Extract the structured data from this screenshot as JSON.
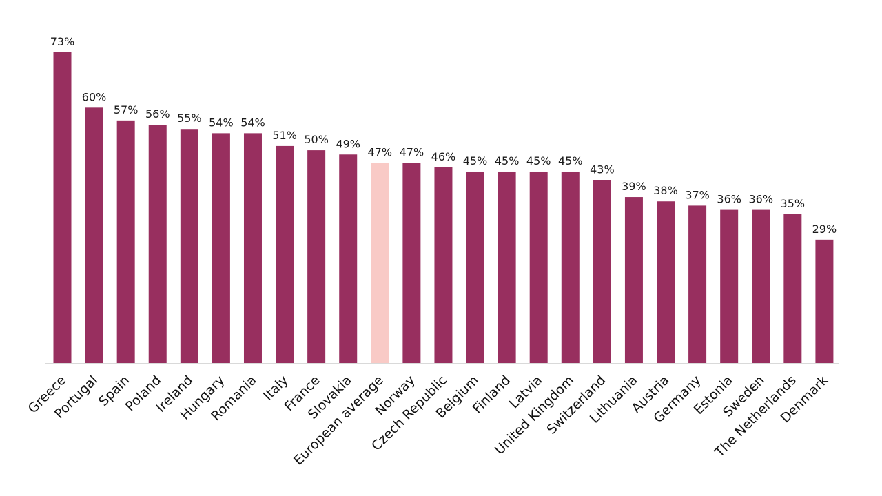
{
  "chart_data": {
    "type": "bar",
    "categories": [
      "Greece",
      "Portugal",
      "Spain",
      "Poland",
      "Ireland",
      "Hungary",
      "Romania",
      "Italy",
      "France",
      "Slovakia",
      "European average",
      "Norway",
      "Czech Republic",
      "Belgium",
      "Finland",
      "Latvia",
      "United Kingdom",
      "Switzerland",
      "Lithuania",
      "Austria",
      "Germany",
      "Estonia",
      "Sweden",
      "The Netherlands",
      "Denmark"
    ],
    "values": [
      73,
      60,
      57,
      56,
      55,
      54,
      54,
      51,
      50,
      49,
      47,
      47,
      46,
      45,
      45,
      45,
      45,
      43,
      39,
      38,
      37,
      36,
      36,
      35,
      29
    ],
    "value_labels": [
      "73%",
      "60%",
      "57%",
      "56%",
      "55%",
      "54%",
      "54%",
      "51%",
      "50%",
      "49%",
      "47%",
      "47%",
      "46%",
      "45%",
      "45%",
      "45%",
      "45%",
      "43%",
      "39%",
      "38%",
      "37%",
      "36%",
      "36%",
      "35%",
      "29%"
    ],
    "highlight_category": "European average",
    "title": "",
    "xlabel": "",
    "ylabel": "",
    "ylim": [
      0,
      73
    ],
    "grid": false,
    "legend": "none",
    "colors": {
      "bar": "#982f5f",
      "highlight": "#f9cac6",
      "axis": "#d9d9d9",
      "text": "#111111"
    }
  }
}
